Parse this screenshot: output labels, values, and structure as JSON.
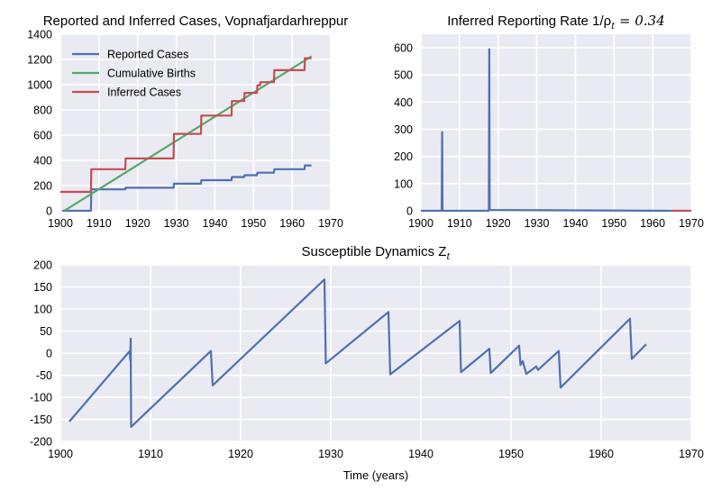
{
  "chart_data": [
    {
      "id": "reported_inferred",
      "type": "line",
      "title": "Reported and Inferred Cases, Vopnafjardarhreppur",
      "xlabel": "",
      "ylabel": "",
      "xlim": [
        1900,
        1970
      ],
      "ylim": [
        0,
        1400
      ],
      "xticks": [
        1900,
        1910,
        1920,
        1930,
        1940,
        1950,
        1960,
        1970
      ],
      "yticks": [
        0,
        200,
        400,
        600,
        800,
        1000,
        1200,
        1400
      ],
      "grid": true,
      "legend": "top-left",
      "series": [
        {
          "name": "Reported Cases",
          "color": "#4c72b0",
          "points": [
            [
              1900.5,
              0
            ],
            [
              1907.9,
              0
            ],
            [
              1908.0,
              170
            ],
            [
              1916.8,
              170
            ],
            [
              1916.9,
              183
            ],
            [
              1929.3,
              183
            ],
            [
              1929.4,
              215
            ],
            [
              1936.4,
              215
            ],
            [
              1936.5,
              243
            ],
            [
              1944.3,
              243
            ],
            [
              1944.4,
              268
            ],
            [
              1947.6,
              268
            ],
            [
              1947.7,
              282
            ],
            [
              1950.9,
              282
            ],
            [
              1951.0,
              302
            ],
            [
              1955.3,
              302
            ],
            [
              1955.4,
              330
            ],
            [
              1963.2,
              330
            ],
            [
              1963.3,
              360
            ],
            [
              1965,
              360
            ]
          ]
        },
        {
          "name": "Cumulative Births",
          "color": "#55a868",
          "points": [
            [
              1901,
              0
            ],
            [
              1965,
              1225
            ]
          ]
        },
        {
          "name": "Inferred Cases",
          "color": "#c44e52",
          "points": [
            [
              1900,
              150
            ],
            [
              1907.9,
              150
            ],
            [
              1908.0,
              330
            ],
            [
              1916.8,
              330
            ],
            [
              1916.9,
              415
            ],
            [
              1929.3,
              415
            ],
            [
              1929.4,
              610
            ],
            [
              1936.4,
              610
            ],
            [
              1936.5,
              755
            ],
            [
              1944.3,
              755
            ],
            [
              1944.4,
              870
            ],
            [
              1947.6,
              870
            ],
            [
              1947.7,
              935
            ],
            [
              1950.9,
              935
            ],
            [
              1951.0,
              995
            ],
            [
              1951.7,
              995
            ],
            [
              1951.8,
              1020
            ],
            [
              1955.3,
              1020
            ],
            [
              1955.4,
              1115
            ],
            [
              1963.2,
              1115
            ],
            [
              1963.3,
              1210
            ],
            [
              1965,
              1210
            ]
          ]
        }
      ]
    },
    {
      "id": "reporting_rate",
      "type": "line",
      "title": "Inferred Reporting Rate 1/ρ",
      "title_sub": "t",
      "title_value": " = 0.34",
      "xlabel": "",
      "ylabel": "",
      "xlim": [
        1900,
        1970
      ],
      "ylim": [
        0,
        650
      ],
      "xticks": [
        1900,
        1910,
        1920,
        1930,
        1940,
        1950,
        1960,
        1970
      ],
      "yticks": [
        0,
        100,
        200,
        300,
        400,
        500,
        600
      ],
      "grid": true,
      "legend": "none",
      "series": [
        {
          "color": "#4c72b0",
          "points": [
            [
              1900,
              0
            ],
            [
              1905.3,
              0
            ],
            [
              1905.4,
              5
            ],
            [
              1905.5,
              290
            ],
            [
              1905.6,
              5
            ],
            [
              1905.7,
              0
            ],
            [
              1917.5,
              0
            ],
            [
              1917.6,
              10
            ],
            [
              1917.7,
              595
            ],
            [
              1917.8,
              10
            ],
            [
              1917.9,
              3
            ],
            [
              1965,
              0
            ]
          ]
        },
        {
          "color": "#c44e52",
          "points": [
            [
              1965,
              0
            ],
            [
              1970,
              0
            ]
          ]
        }
      ]
    },
    {
      "id": "susceptible",
      "type": "line",
      "title": "Susceptible Dynamics Z",
      "title_sub": "t",
      "xlabel": "Time (years)",
      "ylabel": "",
      "xlim": [
        1900,
        1970
      ],
      "ylim": [
        -200,
        200
      ],
      "xticks": [
        1900,
        1910,
        1920,
        1930,
        1940,
        1950,
        1960,
        1970
      ],
      "yticks": [
        -200,
        -150,
        -100,
        -50,
        0,
        50,
        100,
        150,
        200
      ],
      "grid": true,
      "legend": "none",
      "series": [
        {
          "color": "#4c72b0",
          "points": [
            [
              1901,
              -155
            ],
            [
              1907.7,
              5
            ],
            [
              1907.75,
              -15
            ],
            [
              1907.8,
              33
            ],
            [
              1907.85,
              -167
            ],
            [
              1916.7,
              5
            ],
            [
              1916.9,
              -73
            ],
            [
              1929.3,
              167
            ],
            [
              1929.45,
              -23
            ],
            [
              1936.4,
              93
            ],
            [
              1936.6,
              -48
            ],
            [
              1944.3,
              73
            ],
            [
              1944.45,
              -43
            ],
            [
              1947.6,
              10
            ],
            [
              1947.75,
              -45
            ],
            [
              1950.9,
              17
            ],
            [
              1951.05,
              -27
            ],
            [
              1951.3,
              -18
            ],
            [
              1951.7,
              -47
            ],
            [
              1952.8,
              -30
            ],
            [
              1953.0,
              -38
            ],
            [
              1955.3,
              5
            ],
            [
              1955.5,
              -78
            ],
            [
              1963.2,
              78
            ],
            [
              1963.4,
              -13
            ],
            [
              1965,
              20
            ]
          ]
        }
      ]
    }
  ]
}
